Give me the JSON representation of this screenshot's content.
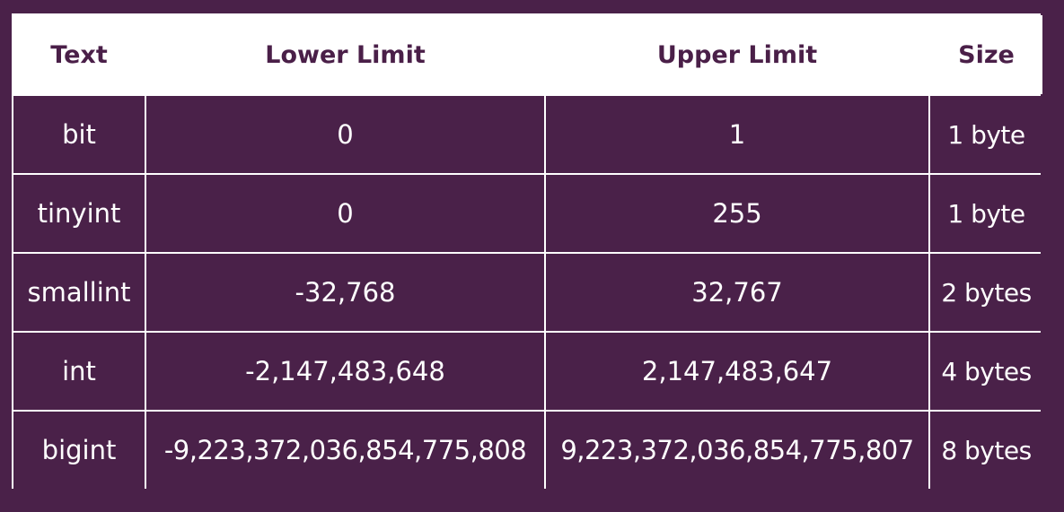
{
  "table": {
    "headers": [
      "Text",
      "Lower Limit",
      "Upper Limit",
      "Size"
    ],
    "rows": [
      [
        "bit",
        "0",
        "1",
        "1 byte"
      ],
      [
        "tinyint",
        "0",
        "255",
        "1 byte"
      ],
      [
        "smallint",
        "-32,768",
        "32,767",
        "2 bytes"
      ],
      [
        "int",
        "-2,147,483,648",
        "2,147,483,647",
        "4 bytes"
      ],
      [
        "bigint",
        "-9,223,372,036,854,775,808",
        "9,223,372,036,854,775,807",
        "8 bytes"
      ]
    ]
  },
  "colors": {
    "background": "#4a2149",
    "header_bg": "#ffffff",
    "header_text": "#4a1f48",
    "cell_text": "#ffffff"
  }
}
